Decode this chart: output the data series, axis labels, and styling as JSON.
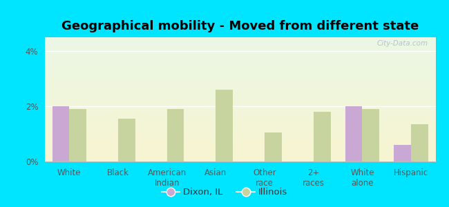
{
  "title": "Geographical mobility - Moved from different state",
  "categories": [
    "White",
    "Black",
    "American\nIndian",
    "Asian",
    "Other\nrace",
    "2+\nraces",
    "White\nalone",
    "Hispanic"
  ],
  "dixon_values": [
    2.0,
    0.0,
    0.0,
    0.0,
    0.0,
    0.0,
    2.0,
    0.6
  ],
  "illinois_values": [
    1.9,
    1.55,
    1.9,
    2.6,
    1.05,
    1.8,
    1.9,
    1.35
  ],
  "dixon_color": "#c9a8d4",
  "illinois_color": "#c8d4a0",
  "bar_width": 0.35,
  "ylim": [
    0,
    4.5
  ],
  "yticks": [
    0,
    2,
    4
  ],
  "ytick_labels": [
    "0%",
    "2%",
    "4%"
  ],
  "outer_bg": "#00e5ff",
  "legend_labels": [
    "Dixon, IL",
    "Illinois"
  ],
  "watermark": "City-Data.com",
  "title_fontsize": 13,
  "axis_label_fontsize": 8.5,
  "legend_fontsize": 9.5
}
